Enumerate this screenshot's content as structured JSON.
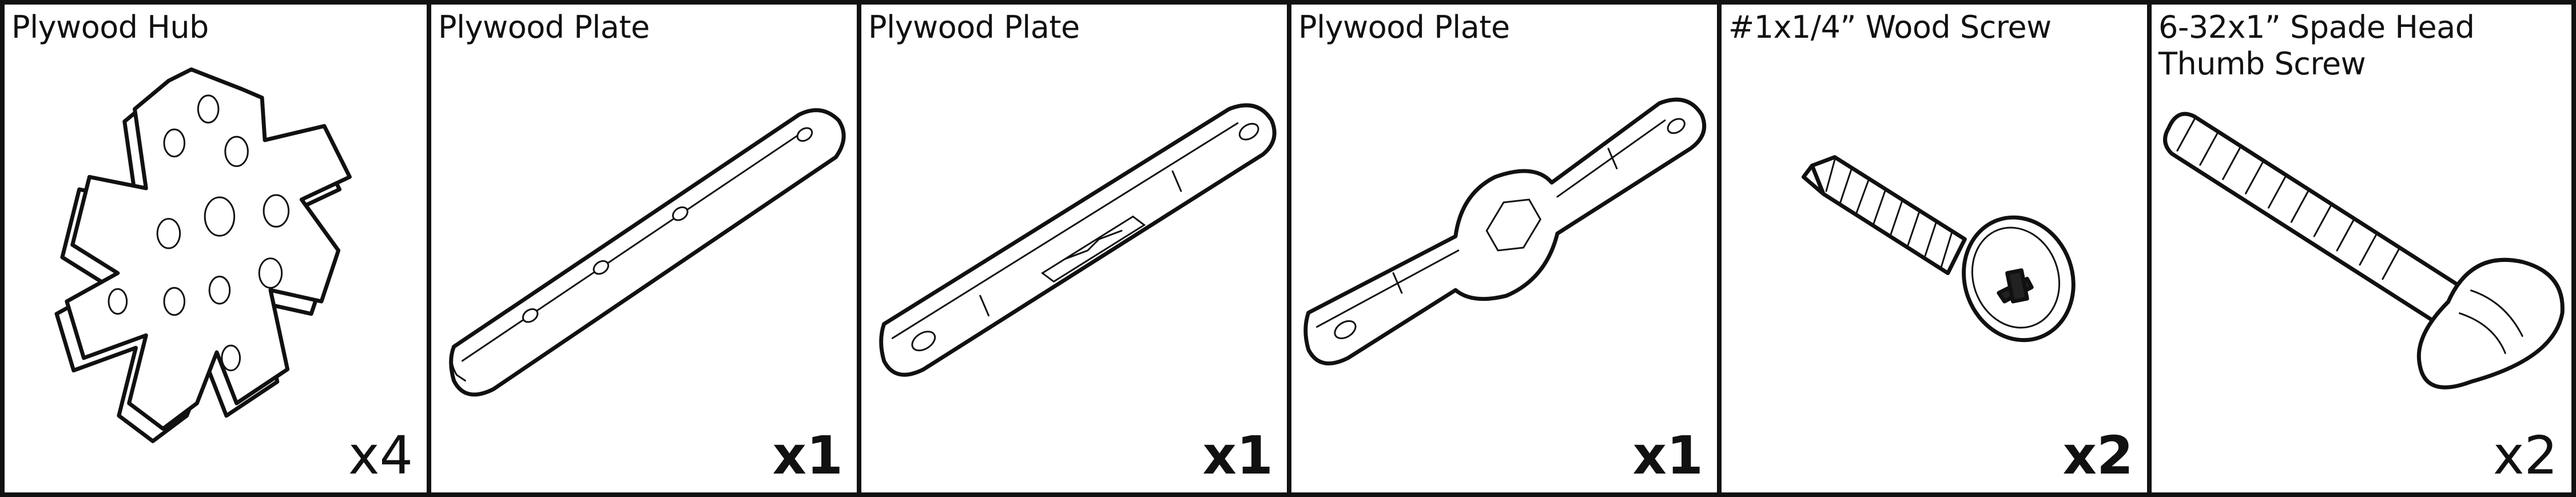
{
  "parts": [
    {
      "name": "Plywood Hub",
      "quantity": "x4"
    },
    {
      "name": "Plywood Plate",
      "quantity": "x1"
    },
    {
      "name": "Plywood Plate",
      "quantity": "x1"
    },
    {
      "name": "Plywood Plate",
      "quantity": "x1"
    },
    {
      "name": "#1x1/4” Wood Screw",
      "quantity": "x2"
    },
    {
      "name": "6-32x1” Spade Head\nThumb Screw",
      "quantity": "x2"
    }
  ]
}
